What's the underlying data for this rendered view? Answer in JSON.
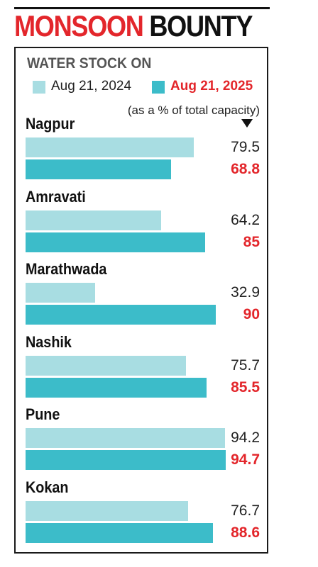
{
  "header": {
    "title_part1": "MONSOON",
    "title_part2": "BOUNTY",
    "subtitle": "WATER STOCK ON",
    "note": "(as a % of total capacity)"
  },
  "colors": {
    "accent_red": "#e3262b",
    "series_2024": "#a8dde2",
    "series_2025": "#3cbcc9"
  },
  "chart_data": {
    "type": "bar",
    "orientation": "horizontal",
    "title": "MONSOON BOUNTY",
    "subtitle": "WATER STOCK ON",
    "unit_note": "(as a % of total capacity)",
    "categories": [
      "Nagpur",
      "Amravati",
      "Marathwada",
      "Nashik",
      "Pune",
      "Kokan"
    ],
    "series": [
      {
        "name": "Aug 21, 2024",
        "values": [
          79.5,
          64.2,
          32.9,
          75.7,
          94.2,
          76.7
        ],
        "labels": [
          "79.5",
          "64.2",
          "32.9",
          "75.7",
          "94.2",
          "76.7"
        ]
      },
      {
        "name": "Aug 21, 2025",
        "values": [
          68.8,
          85,
          90,
          85.5,
          94.7,
          88.6
        ],
        "labels": [
          "68.8",
          "85",
          "90",
          "85.5",
          "94.7",
          "88.6"
        ]
      }
    ],
    "legend_position": "top",
    "grid": false
  }
}
